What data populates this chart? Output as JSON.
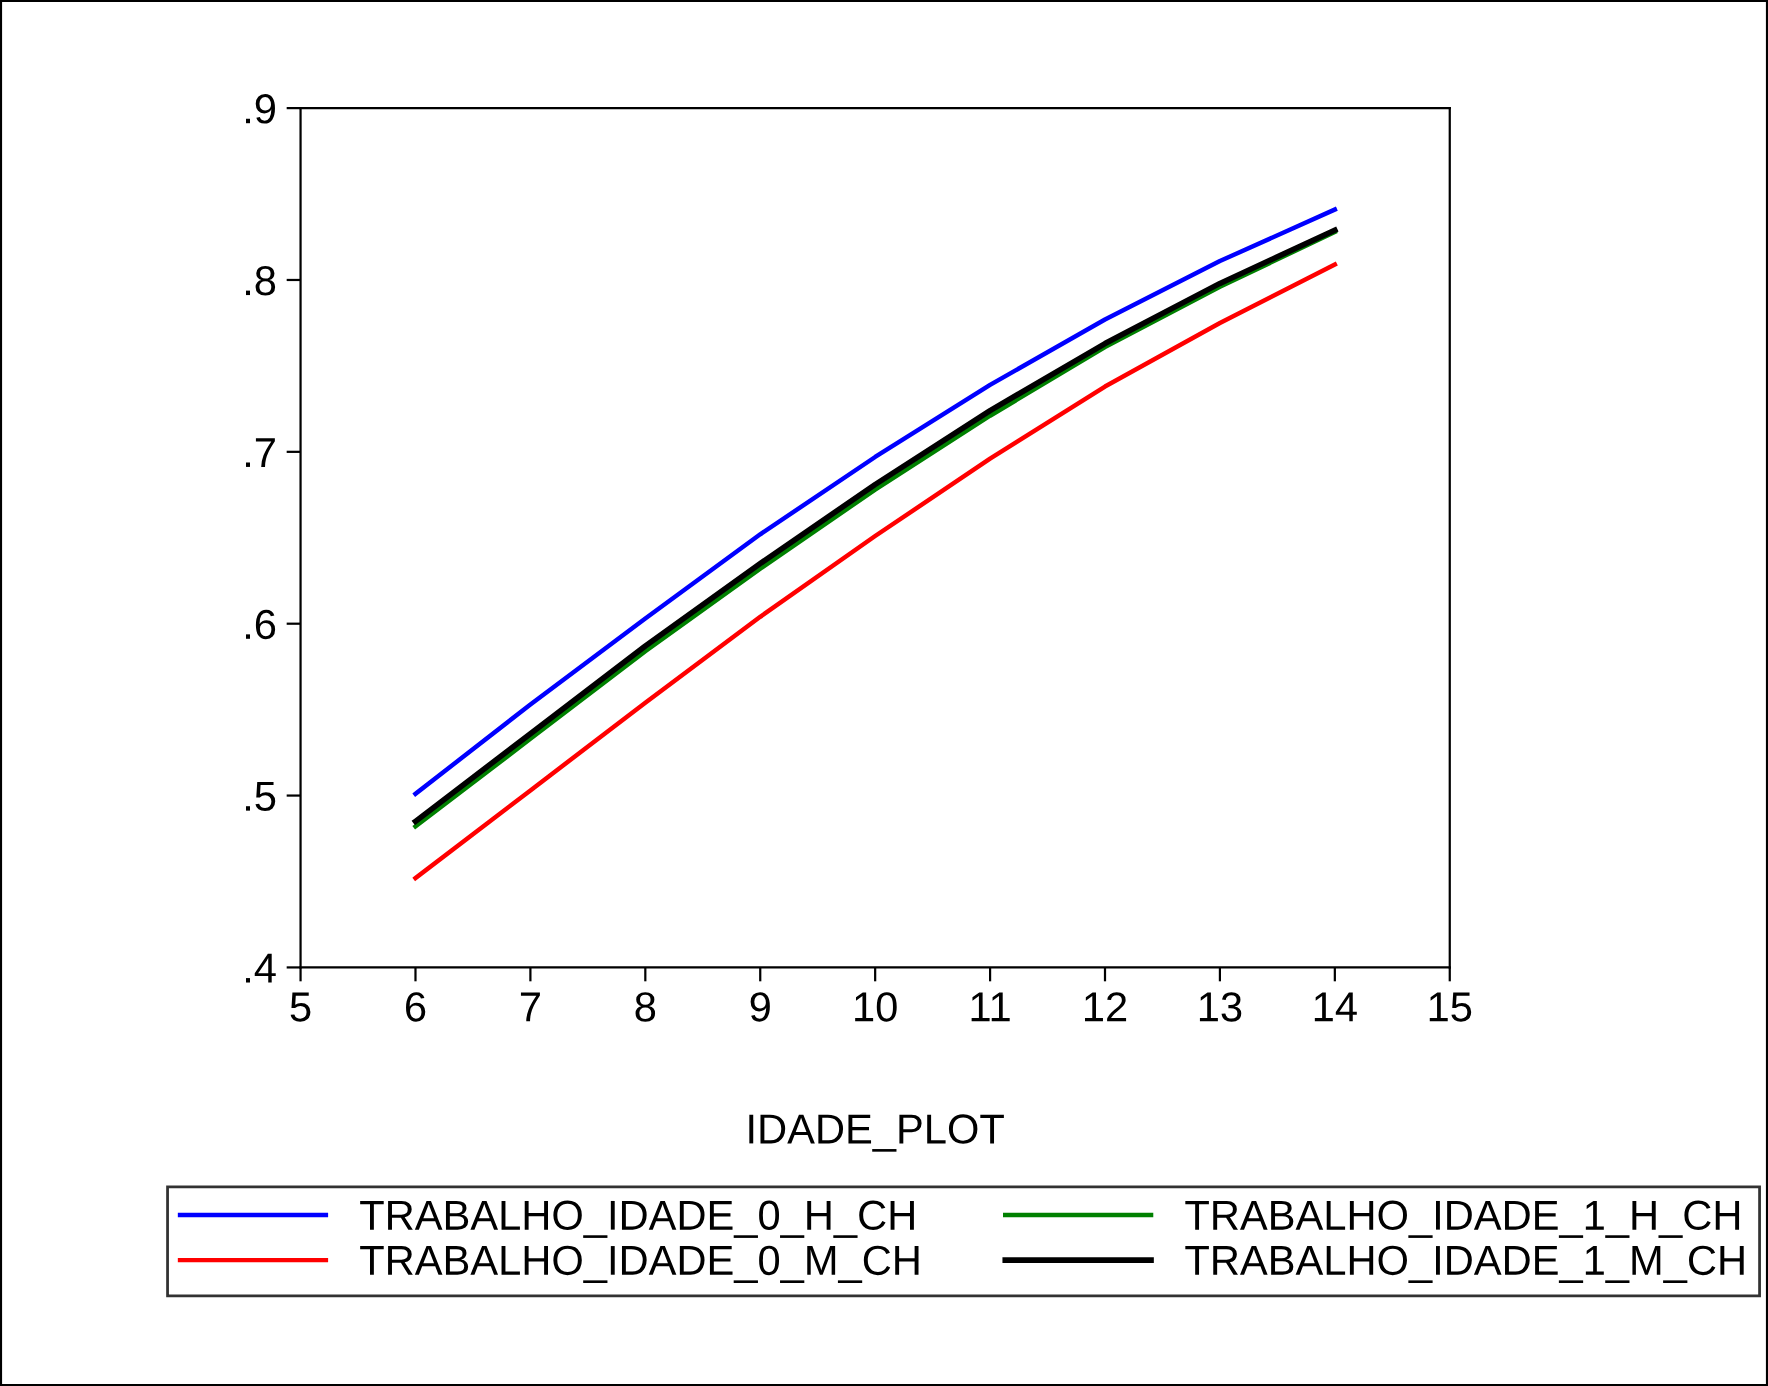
{
  "chart_data": {
    "type": "line",
    "xlabel": "IDADE_PLOT",
    "x": [
      6,
      7,
      8,
      9,
      10,
      11,
      12,
      13,
      14
    ],
    "series": [
      {
        "name": "TRABALHO_IDADE_0_H_CH",
        "color": "#0000ff",
        "values": [
          0.501,
          0.553,
          0.603,
          0.652,
          0.697,
          0.739,
          0.777,
          0.811,
          0.841
        ]
      },
      {
        "name": "TRABALHO_IDADE_0_M_CH",
        "color": "#ff0000",
        "values": [
          0.452,
          0.503,
          0.554,
          0.604,
          0.651,
          0.696,
          0.738,
          0.775,
          0.809
        ]
      },
      {
        "name": "TRABALHO_IDADE_1_H_CH",
        "color": "#008000",
        "values": [
          0.482,
          0.533,
          0.584,
          0.632,
          0.678,
          0.721,
          0.761,
          0.796,
          0.828
        ]
      },
      {
        "name": "TRABALHO_IDADE_1_M_CH",
        "color": "#000000",
        "values": [
          0.485,
          0.536,
          0.587,
          0.635,
          0.681,
          0.724,
          0.763,
          0.798,
          0.829
        ]
      }
    ],
    "xlim": [
      5,
      15
    ],
    "xticks": [
      5,
      6,
      7,
      8,
      9,
      10,
      11,
      12,
      13,
      14,
      15
    ],
    "ylim": [
      0.4,
      0.9
    ],
    "yticks": [
      {
        "value": 0.4,
        "label": ".4"
      },
      {
        "value": 0.5,
        "label": ".5"
      },
      {
        "value": 0.6,
        "label": ".6"
      },
      {
        "value": 0.7,
        "label": ".7"
      },
      {
        "value": 0.8,
        "label": ".8"
      },
      {
        "value": 0.9,
        "label": ".9"
      }
    ],
    "grid": false,
    "legend": "bottom",
    "marker": "none",
    "line_style": "solid"
  }
}
